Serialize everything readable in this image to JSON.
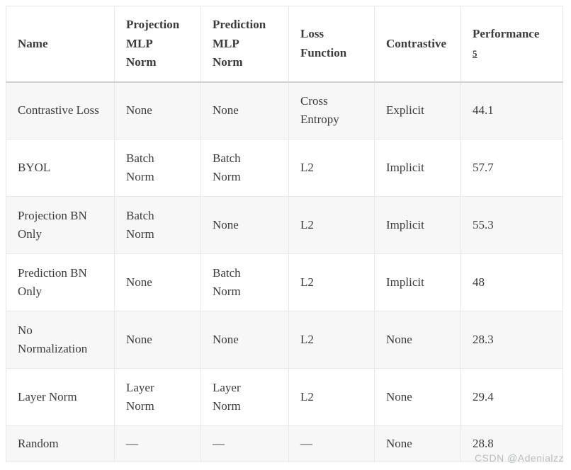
{
  "table": {
    "columns": [
      {
        "label": "Name"
      },
      {
        "label": "Projection MLP Norm"
      },
      {
        "label": "Prediction MLP Norm"
      },
      {
        "label": "Loss Function"
      },
      {
        "label": "Contrastive"
      },
      {
        "label": "Performance",
        "footnote_ref": "5"
      }
    ],
    "rows": [
      [
        "Contrastive Loss",
        "None",
        "None",
        "Cross Entropy",
        "Explicit",
        "44.1"
      ],
      [
        "BYOL",
        "Batch Norm",
        "Batch Norm",
        "L2",
        "Implicit",
        "57.7"
      ],
      [
        "Projection BN Only",
        "Batch Norm",
        "None",
        "L2",
        "Implicit",
        "55.3"
      ],
      [
        "Prediction BN Only",
        "None",
        "Batch Norm",
        "L2",
        "Implicit",
        "48"
      ],
      [
        "No Normalization",
        "None",
        "None",
        "L2",
        "None",
        "28.3"
      ],
      [
        "Layer Norm",
        "Layer Norm",
        "Layer Norm",
        "L2",
        "None",
        "29.4"
      ],
      [
        "Random",
        "—",
        "—",
        "—",
        "None",
        "28.8"
      ]
    ]
  },
  "watermark": {
    "text": "CSDN @Adenialzz"
  },
  "colors": {
    "text": "#3b3b3b",
    "cell_border": "#e8e8e8",
    "header_bottom_border": "#d0d0d0",
    "row_stripe": "#f7f7f7",
    "watermark_text": "#b9bdc0",
    "background": "#ffffff"
  }
}
